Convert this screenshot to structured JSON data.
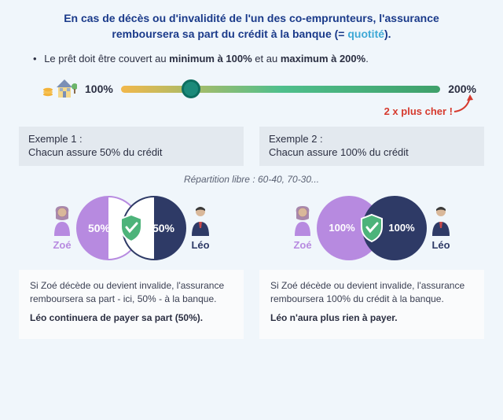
{
  "intro": {
    "line1": "En cas de décès ou d'invalidité de l'un des co-emprunteurs, l'assurance",
    "line2_before": "remboursera sa part du crédit à la banque (= ",
    "quotite": "quotité",
    "line2_after": ")."
  },
  "rule": {
    "prefix": "Le prêt doit être couvert au ",
    "min": "minimum à 100%",
    "mid": " et au ",
    "max": "maximum à 200%",
    "suffix": "."
  },
  "slider": {
    "left_label": "100%",
    "right_label": "200%",
    "gradient": [
      "#f2b84b",
      "#4fbf8c",
      "#3fa06a"
    ],
    "track_height": 9,
    "thumb_pos_pct": 22,
    "thumb_color": "#1b8a7a",
    "thumb_border": "#0d6e60",
    "cost_note": "2 x plus cher !",
    "cost_color": "#d63a2e"
  },
  "icons": {
    "coins_color": "#f3b33a",
    "house_wall": "#f4d88a",
    "house_roof": "#7a8fb5",
    "tree_color": "#6bb56a"
  },
  "examples": {
    "repartition_note": "Répartition libre : 60-40, 70-30...",
    "ex1": {
      "title_l1": "Exemple 1 :",
      "title_l2": "Chacun assure 50% du crédit",
      "left": {
        "name": "Zoé",
        "pct": "50%",
        "color": "#b78ae0",
        "fill_style": "half",
        "name_color": "#b78ae0"
      },
      "right": {
        "name": "Léo",
        "pct": "50%",
        "color": "#2e3a66",
        "fill_style": "half",
        "name_color": "#2e3a66"
      },
      "p1": "Si Zoé décède ou devient invalide, l'assurance remboursera sa part - ici, 50% - à la banque.",
      "p2": "Léo continuera de payer sa part (50%)."
    },
    "ex2": {
      "title_l1": "Exemple 2 :",
      "title_l2": "Chacun assure 100% du crédit",
      "left": {
        "name": "Zoé",
        "pct": "100%",
        "color": "#b78ae0",
        "fill_style": "full",
        "name_color": "#b78ae0"
      },
      "right": {
        "name": "Léo",
        "pct": "100%",
        "color": "#2e3a66",
        "fill_style": "full",
        "name_color": "#2e3a66"
      },
      "p1": "Si Zoé décède ou devient invalide, l'assurance remboursera 100% du crédit à la banque.",
      "p2": "Léo n'aura plus rien à payer."
    }
  },
  "shield": {
    "bg": "#4db37a",
    "stroke": "#ffffff",
    "check": "#ffffff"
  },
  "person": {
    "female_color": "#b78ae0",
    "male_color": "#2e3a66",
    "skin": "#d9b89a"
  }
}
